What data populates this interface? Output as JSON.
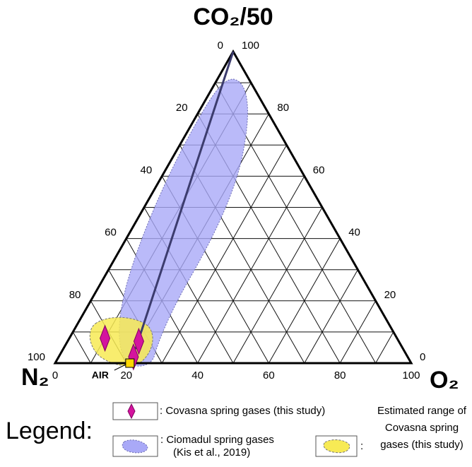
{
  "chart_data": {
    "type": "ternary",
    "title": "CO₂/50",
    "corner_labels": {
      "left": "N₂",
      "right": "O₂"
    },
    "left_axis_ticks": [
      0,
      20,
      40,
      60,
      80,
      100
    ],
    "right_axis_ticks": [
      0,
      20,
      40,
      60,
      80,
      100
    ],
    "bottom_axis_ticks": [
      0,
      20,
      40,
      60,
      80,
      100
    ],
    "grid_ticks": [
      10,
      20,
      30,
      40,
      50,
      60,
      70,
      80,
      90
    ],
    "grid": true,
    "series": [
      {
        "name": "Covasna spring gases (this study)",
        "color": "#d4149e",
        "n2": [
          82,
          73,
          77
        ],
        "co2": [
          8,
          7,
          2
        ],
        "o2": [
          10,
          20,
          21
        ]
      }
    ],
    "air": {
      "label": "AIR",
      "n2": 79,
      "co2": 0,
      "o2": 21,
      "color": "#ffd700"
    },
    "legend": {
      "title": "Legend:",
      "items": [
        {
          "lines": [
            ": Covasna spring gases (this study)"
          ]
        },
        {
          "lines": [
            ": Ciomadul spring gases",
            "(Kis et al., 2019)"
          ]
        },
        {
          "lines": [
            "Estimated range of",
            "Covasna spring",
            "gases (this study)"
          ],
          "prefix": ":"
        }
      ]
    }
  }
}
